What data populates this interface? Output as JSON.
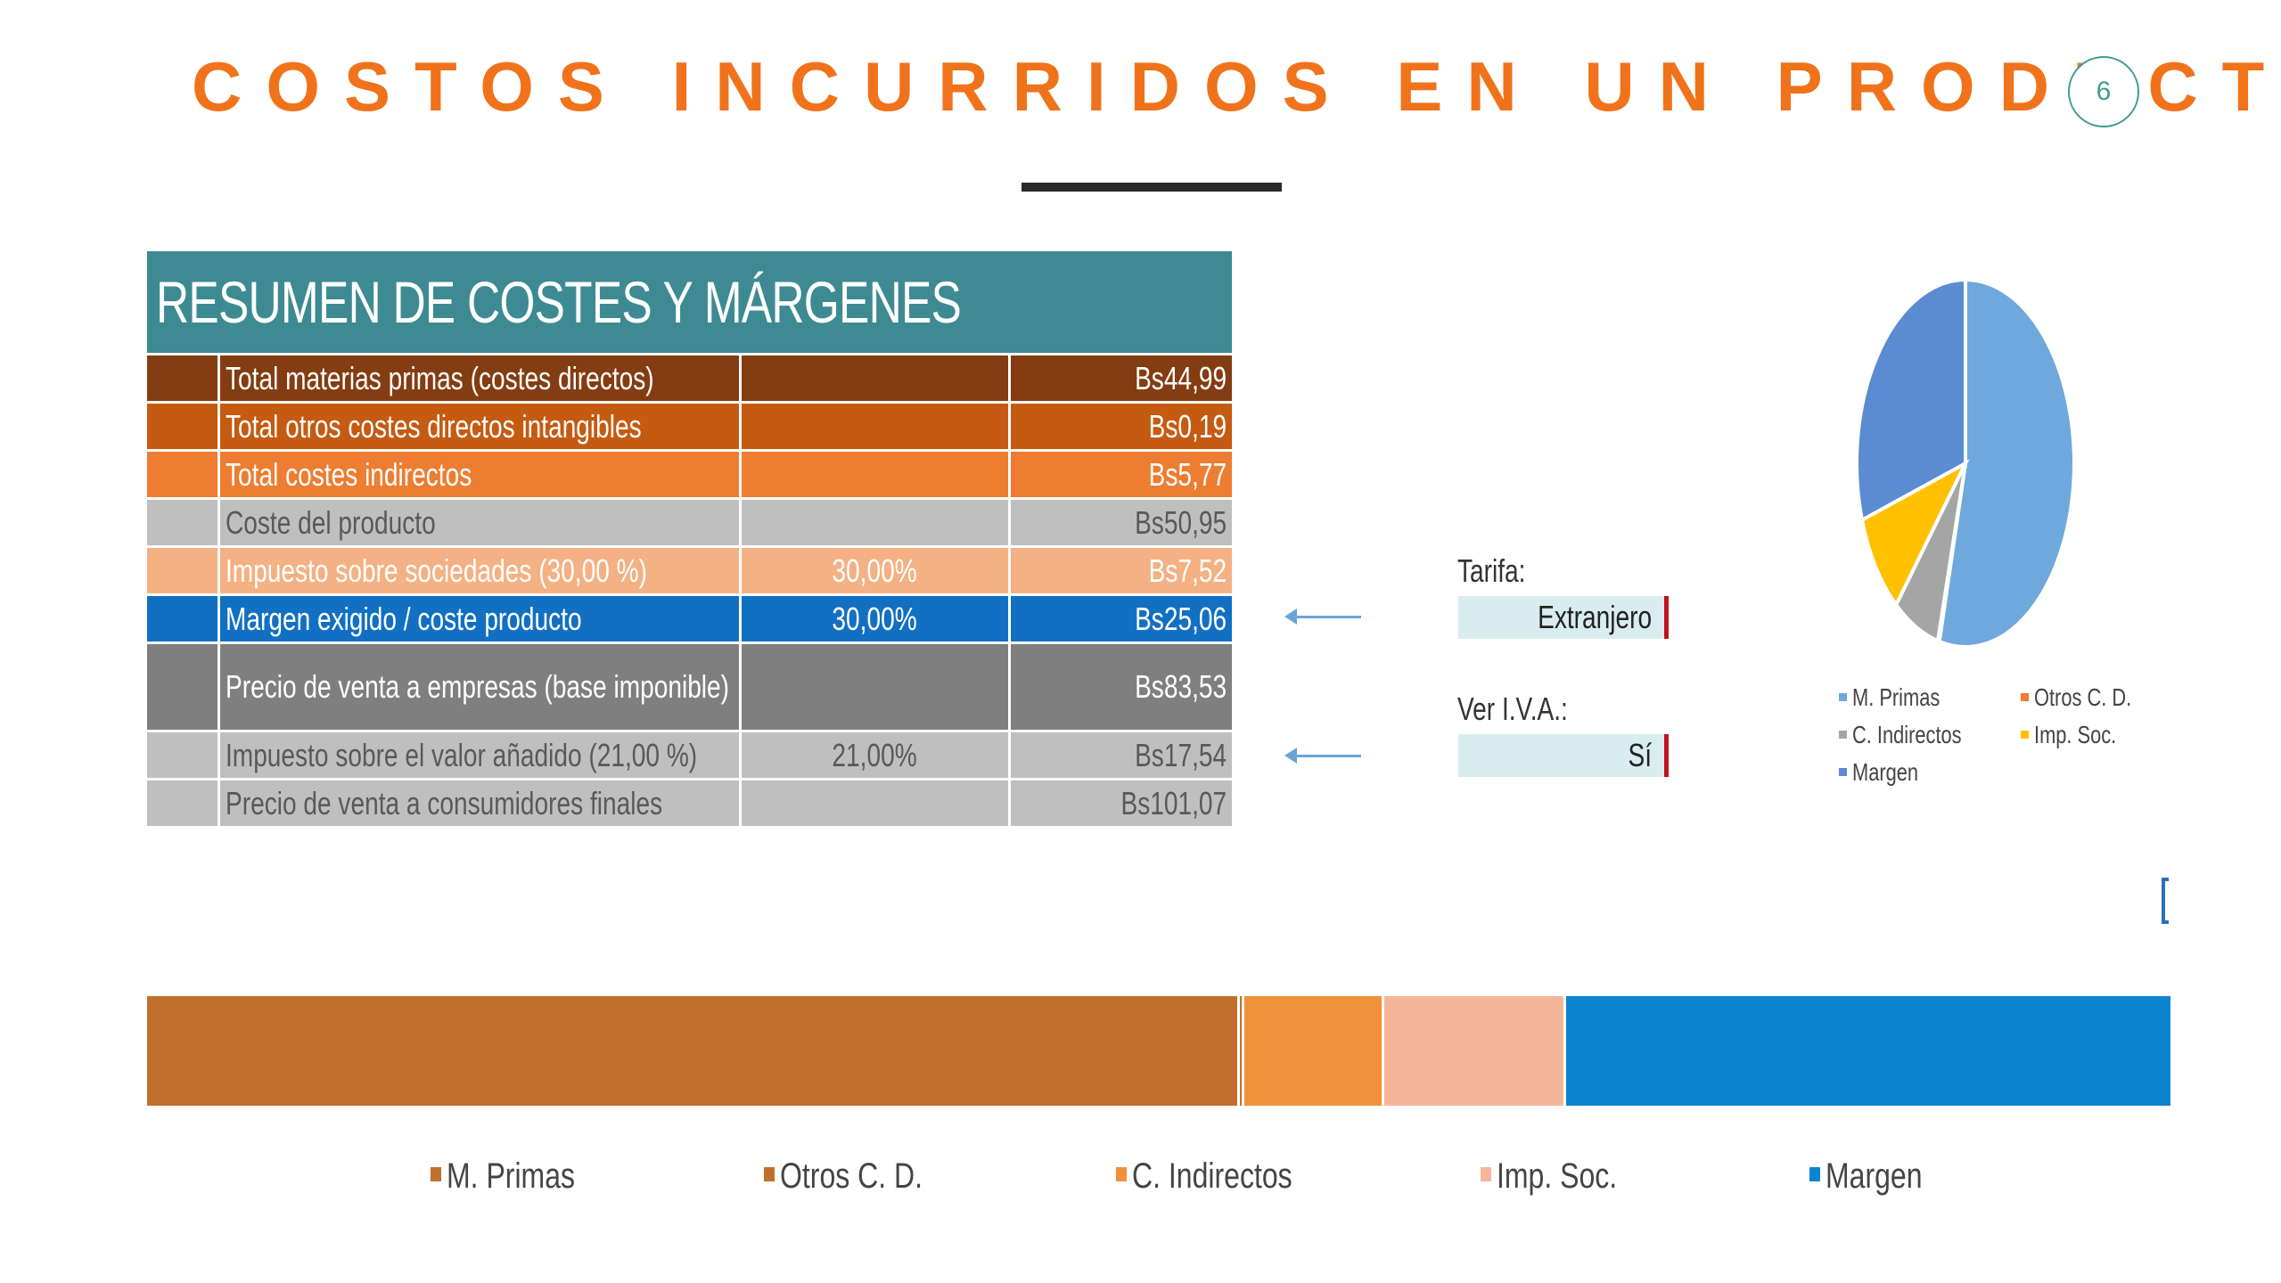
{
  "slide": {
    "title": "COSTOS INCURRIDOS EN UN PRODUCTO",
    "page_number": "6"
  },
  "table": {
    "header": "RESUMEN DE COSTES Y MÁRGENES",
    "rows": [
      {
        "label": "Total materias primas (costes directos)",
        "pct": "",
        "value": "Bs44,99",
        "bg": "#843c12",
        "fg": "#ffffff"
      },
      {
        "label": "Total otros costes directos intangibles",
        "pct": "",
        "value": "Bs0,19",
        "bg": "#c55a11",
        "fg": "#ffffff"
      },
      {
        "label": "Total costes indirectos",
        "pct": "",
        "value": "Bs5,77",
        "bg": "#ed7d31",
        "fg": "#ffffff"
      },
      {
        "label": "Coste del producto",
        "pct": "",
        "value": "Bs50,95",
        "bg": "#bfbfbf",
        "fg": "#595959"
      },
      {
        "label": "Impuesto sobre sociedades (30,00 %)",
        "pct": "30,00%",
        "value": "Bs7,52",
        "bg": "#f4b183",
        "fg": "#ffffff"
      },
      {
        "label": "Margen exigido / coste producto",
        "pct": "30,00%",
        "value": "Bs25,06",
        "bg": "#1270c3",
        "fg": "#ffffff"
      },
      {
        "label": "Precio de venta a empresas (base imponible)",
        "pct": "",
        "value": "Bs83,53",
        "bg": "#7f7f7f",
        "fg": "#ffffff"
      },
      {
        "label": "Impuesto sobre el valor añadido (21,00 %)",
        "pct": "21,00%",
        "value": "Bs17,54",
        "bg": "#bfbfbf",
        "fg": "#595959"
      },
      {
        "label": "Precio de venta a consumidores finales",
        "pct": "",
        "value": "Bs101,07",
        "bg": "#bfbfbf",
        "fg": "#595959"
      }
    ]
  },
  "controls": {
    "tarifa_label": "Tarifa:",
    "tarifa_value": "Extranjero",
    "iva_label": "Ver I.V.A.:",
    "iva_value": "Sí"
  },
  "pie_chart": {
    "series": [
      {
        "name": "M. Primas",
        "value": 44.99,
        "color": "#6fa8dc"
      },
      {
        "name": "Otros C. D.",
        "value": 0.19,
        "color": "#ed7d31"
      },
      {
        "name": "C. Indirectos",
        "value": 5.77,
        "color": "#a5a5a5"
      },
      {
        "name": "Imp. Soc.",
        "value": 7.52,
        "color": "#ffc000"
      },
      {
        "name": "Margen",
        "value": 25.06,
        "color": "#5b8bd0"
      }
    ]
  },
  "bar_chart": {
    "series": [
      {
        "name": "M. Primas",
        "value": 44.99,
        "color": "#c0702a"
      },
      {
        "name": "Otros C. D.",
        "value": 0.19,
        "color": "#c0702a"
      },
      {
        "name": "C. Indirectos",
        "value": 5.77,
        "color": "#f0913a"
      },
      {
        "name": "Imp. Soc.",
        "value": 7.52,
        "color": "#f5b59a"
      },
      {
        "name": "Margen",
        "value": 25.06,
        "color": "#0b84d0"
      }
    ],
    "legend_colors": [
      "#c0702a",
      "#c0702a",
      "#f0913a",
      "#f5b59a",
      "#0b84d0"
    ]
  }
}
